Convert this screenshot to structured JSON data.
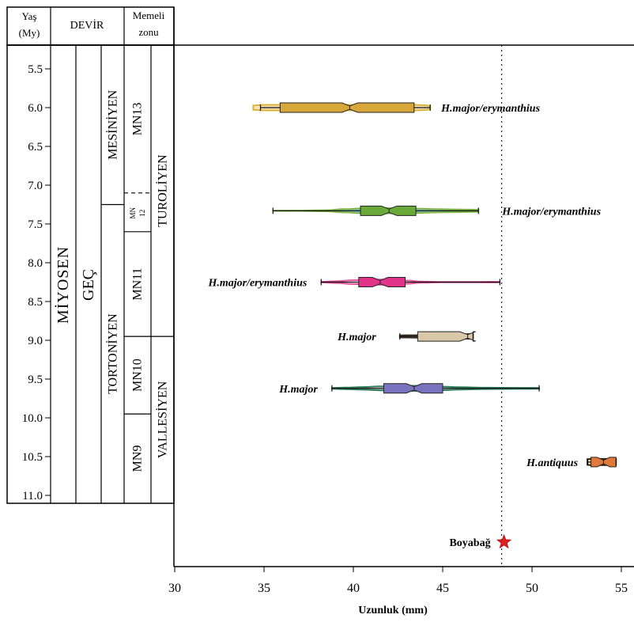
{
  "chart_data": {
    "type": "violin",
    "xlabel": "Uzunluk (mm)",
    "xlim": [
      30,
      56
    ],
    "xticks": [
      30,
      35,
      40,
      45,
      50,
      55
    ],
    "ylim": [
      5.0,
      11.1
    ],
    "yticks": [
      "5.5",
      "6.0",
      "6.5",
      "7.0",
      "7.5",
      "8.0",
      "8.5",
      "9.0",
      "9.5",
      "10.0",
      "10.5",
      "11.0"
    ],
    "header": {
      "age": "Yaş (My)",
      "devir": "DEVİR",
      "mammal_zone": "Memeli zonu"
    },
    "chronostratigraphy": {
      "epoch": "MİYOSEN",
      "subepoch": "GEÇ",
      "stages": [
        {
          "label": "MESİNİYEN",
          "from": 5.0,
          "to": 7.25
        },
        {
          "label": "TORTONİYEN",
          "from": 7.25,
          "to": 11.1
        }
      ],
      "mn_zones": [
        {
          "label": "MN13",
          "from": 5.0,
          "to": 7.1
        },
        {
          "label": "MN 12",
          "from": 7.1,
          "to": 7.6
        },
        {
          "label": "MN11",
          "from": 7.6,
          "to": 8.95
        },
        {
          "label": "MN10",
          "from": 8.95,
          "to": 9.95
        },
        {
          "label": "MN9",
          "from": 9.95,
          "to": 11.1
        }
      ],
      "mammal_stages": [
        {
          "label": "TUROLİYEN",
          "from": 5.0,
          "to": 8.95
        },
        {
          "label": "VALLESİYEN",
          "from": 8.95,
          "to": 11.1
        }
      ]
    },
    "series": [
      {
        "name": "H.major/erymanthius",
        "age": 6.0,
        "min": 34.8,
        "q1": 35.9,
        "median": 39.8,
        "q3": 43.4,
        "max": 44.3,
        "fill": "#f9e3b4",
        "edge": "#d9b43a",
        "box": "#d9a63a",
        "shape": [
          [
            34.4,
            0.55
          ],
          [
            34.8,
            0.7
          ],
          [
            36,
            0.72
          ],
          [
            38,
            0.72
          ],
          [
            40,
            0.7
          ],
          [
            42,
            0.72
          ],
          [
            43.6,
            0.7
          ],
          [
            44.1,
            0.6
          ],
          [
            44.3,
            0.4
          ]
        ]
      },
      {
        "name": "H.major/erymanthius",
        "age": 7.33,
        "min": 35.5,
        "q1": 40.4,
        "median": 42.0,
        "q3": 43.5,
        "max": 47.0,
        "fill": "#7fc9cc",
        "edge": "#7cb342",
        "box": "#6aaa3a",
        "shape": [
          [
            35.5,
            0.02
          ],
          [
            37,
            0.04
          ],
          [
            38.5,
            0.15
          ],
          [
            39.5,
            0.42
          ],
          [
            40.5,
            0.6
          ],
          [
            41.5,
            0.66
          ],
          [
            42.5,
            0.64
          ],
          [
            43.5,
            0.55
          ],
          [
            44.5,
            0.44
          ],
          [
            45.5,
            0.35
          ],
          [
            46.5,
            0.3
          ],
          [
            47.0,
            0.26
          ]
        ]
      },
      {
        "name": "H.major/erymanthius",
        "age": 8.25,
        "min": 38.2,
        "q1": 40.3,
        "median": 41.5,
        "q3": 42.9,
        "max": 48.2,
        "fill": "#ffffff",
        "edge": "#e04f9a",
        "box": "#e0338a",
        "shape": [
          [
            38.2,
            0.08
          ],
          [
            39.0,
            0.22
          ],
          [
            40.0,
            0.5
          ],
          [
            41.0,
            0.66
          ],
          [
            41.6,
            0.68
          ],
          [
            42.3,
            0.6
          ],
          [
            43.0,
            0.4
          ],
          [
            43.8,
            0.15
          ],
          [
            45,
            0.04
          ],
          [
            46.5,
            0.05
          ],
          [
            47.5,
            0.08
          ],
          [
            48.2,
            0.06
          ]
        ]
      },
      {
        "name": "H.major",
        "age": 8.95,
        "min": 42.6,
        "q1": 43.6,
        "median": 46.4,
        "q3": 46.7,
        "max": 46.7,
        "fill": "#e8dcc3",
        "edge": "#3a3026",
        "box": "#d9c8a8",
        "shape": [
          [
            42.6,
            0.28
          ],
          [
            43.3,
            0.3
          ],
          [
            44.2,
            0.34
          ],
          [
            45.2,
            0.45
          ],
          [
            46.0,
            0.58
          ],
          [
            46.5,
            0.62
          ],
          [
            46.7,
            0.5
          ]
        ]
      },
      {
        "name": "H.major",
        "age": 9.62,
        "min": 38.8,
        "q1": 41.7,
        "median": 43.4,
        "q3": 45.0,
        "max": 50.4,
        "fill": "#dcd9ee",
        "edge": "#2e7d5b",
        "box": "#7a73c0",
        "shape": [
          [
            38.8,
            0.12
          ],
          [
            39.5,
            0.2
          ],
          [
            40.5,
            0.33
          ],
          [
            41.5,
            0.5
          ],
          [
            42.5,
            0.62
          ],
          [
            43.3,
            0.66
          ],
          [
            44.2,
            0.6
          ],
          [
            45,
            0.45
          ],
          [
            46,
            0.3
          ],
          [
            47.5,
            0.18
          ],
          [
            49,
            0.13
          ],
          [
            50.4,
            0.12
          ]
        ]
      },
      {
        "name": "H.antiquus",
        "age": 10.57,
        "min": 53.1,
        "q1": 53.3,
        "median": 54.0,
        "q3": 54.7,
        "max": 54.7,
        "fill": "#fbd9b9",
        "edge": "#2a1d12",
        "box": "#e07a3a",
        "shape": [
          [
            53.1,
            0.72
          ],
          [
            53.3,
            0.8
          ],
          [
            54.0,
            0.8
          ],
          [
            54.7,
            0.8
          ],
          [
            54.7,
            0.72
          ]
        ]
      }
    ],
    "reference": {
      "x": 48.3,
      "label": "Boyabağ"
    }
  }
}
